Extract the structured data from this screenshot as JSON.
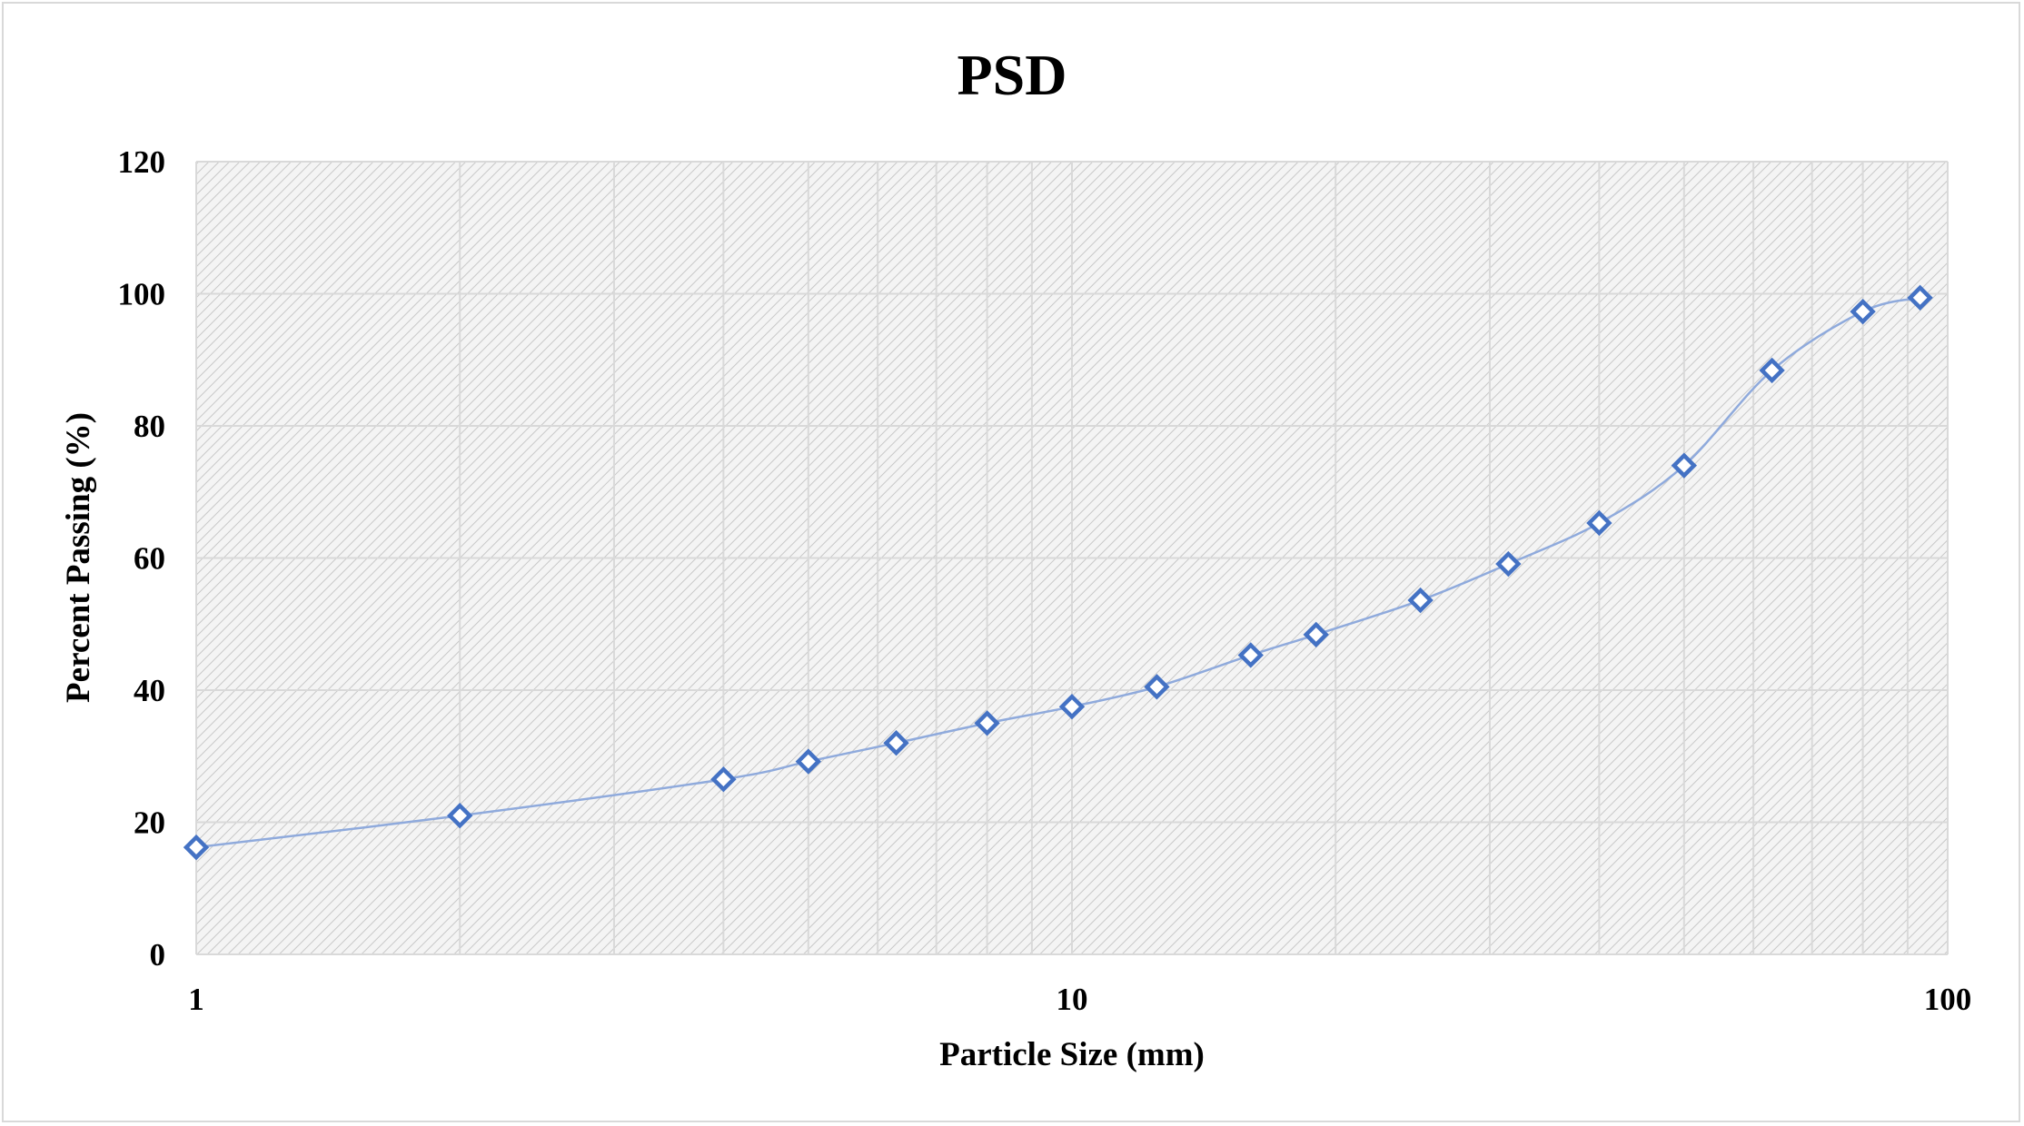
{
  "chart_data": {
    "type": "scatter",
    "title": "PSD",
    "xlabel": "Particle Size (mm)",
    "ylabel": "Percent Passing (%)",
    "x_scale": "log",
    "xlim": [
      1,
      100
    ],
    "ylim": [
      0,
      120
    ],
    "x_ticks": [
      "1",
      "10",
      "100"
    ],
    "y_ticks": [
      "0",
      "20",
      "40",
      "60",
      "80",
      "100",
      "120"
    ],
    "grid": true,
    "legend": "none",
    "series": [
      {
        "line": "smoothed",
        "marker": "hollow-diamond",
        "color": "#4472c4",
        "line_color": "#8faadc",
        "x": [
          1.0,
          2.0,
          4.0,
          5.0,
          6.3,
          8.0,
          10.0,
          12.5,
          16.0,
          19.0,
          25.0,
          31.5,
          40.0,
          50.0,
          63.0,
          80.0,
          93.0
        ],
        "y": [
          16.2,
          21.0,
          26.5,
          29.2,
          32.0,
          35.0,
          37.5,
          40.5,
          45.3,
          48.4,
          53.6,
          59.1,
          65.3,
          74.0,
          88.4,
          97.3,
          99.4
        ]
      }
    ]
  }
}
